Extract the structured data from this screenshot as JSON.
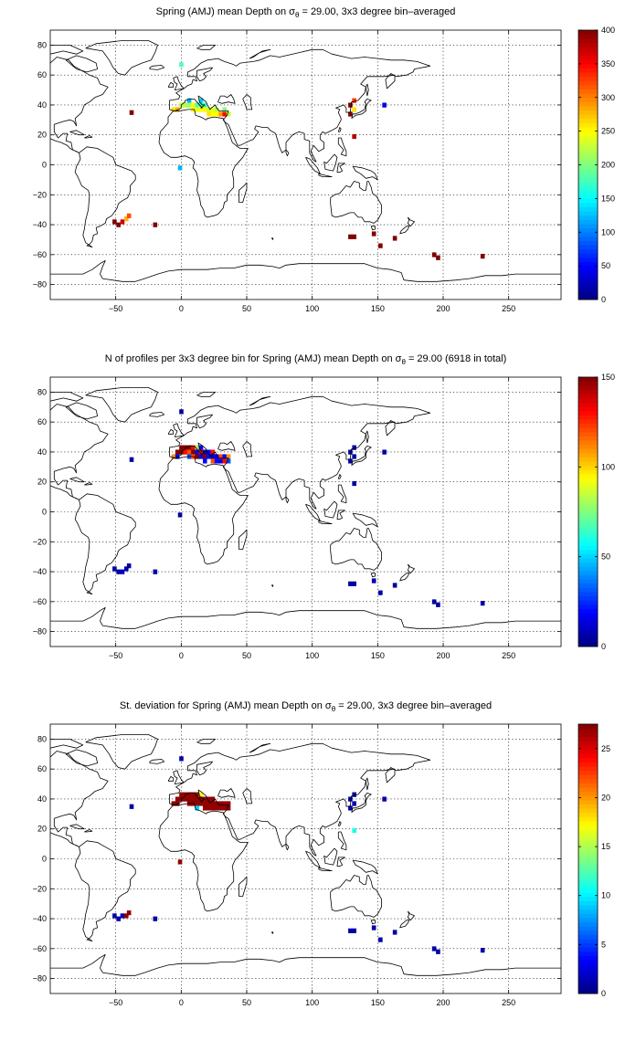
{
  "colormap": "jet",
  "colors": {
    "coast": "#000000",
    "background": "#ffffff"
  },
  "chart_data": [
    {
      "type": "heatmap",
      "title_main": "Spring (AMJ) mean Depth on σ",
      "title_sub": "θ",
      "title_rest": " = 29.00, 3x3 degree bin–averaged",
      "xlim": [
        -100,
        290
      ],
      "ylim": [
        -90,
        90
      ],
      "xticks": [
        -50,
        0,
        50,
        100,
        150,
        200,
        250
      ],
      "yticks": [
        -80,
        -60,
        -40,
        -20,
        0,
        20,
        40,
        60,
        80
      ],
      "grid": true,
      "colorbar": {
        "min": 0,
        "max": 400,
        "ticks": [
          0,
          50,
          100,
          150,
          200,
          250,
          300,
          350,
          400
        ]
      },
      "bin_size_deg": 3,
      "cells": [
        [
          0,
          67,
          180
        ],
        [
          -1,
          -2,
          120
        ],
        [
          -38,
          35,
          400
        ],
        [
          -51,
          -38,
          400
        ],
        [
          -48,
          -40,
          400
        ],
        [
          -45,
          -38,
          370
        ],
        [
          -42,
          -36,
          280
        ],
        [
          -40,
          -34,
          320
        ],
        [
          -20,
          -40,
          400
        ],
        [
          -6,
          37,
          260
        ],
        [
          -3,
          37,
          280
        ],
        [
          0,
          40,
          230
        ],
        [
          3,
          40,
          220
        ],
        [
          6,
          43,
          120
        ],
        [
          6,
          40,
          210
        ],
        [
          9,
          40,
          250
        ],
        [
          9,
          37,
          250
        ],
        [
          12,
          40,
          180
        ],
        [
          12,
          37,
          240
        ],
        [
          15,
          43,
          130
        ],
        [
          15,
          40,
          180
        ],
        [
          15,
          37,
          250
        ],
        [
          18,
          40,
          170
        ],
        [
          18,
          37,
          250
        ],
        [
          21,
          37,
          230
        ],
        [
          21,
          34,
          260
        ],
        [
          24,
          37,
          240
        ],
        [
          24,
          34,
          250
        ],
        [
          27,
          37,
          220
        ],
        [
          27,
          34,
          250
        ],
        [
          30,
          34,
          290
        ],
        [
          33,
          34,
          350
        ],
        [
          33,
          37,
          200
        ],
        [
          36,
          34,
          230
        ],
        [
          129,
          40,
          400
        ],
        [
          132,
          43,
          330
        ],
        [
          132,
          37,
          260
        ],
        [
          129,
          34,
          400
        ],
        [
          132,
          19,
          380
        ],
        [
          155,
          40,
          40
        ],
        [
          129,
          -48,
          400
        ],
        [
          132,
          -48,
          400
        ],
        [
          147,
          -46,
          400
        ],
        [
          152,
          -54,
          400
        ],
        [
          163,
          -49,
          400
        ],
        [
          193,
          -60,
          400
        ],
        [
          196,
          -62,
          400
        ],
        [
          230,
          -61,
          400
        ]
      ]
    },
    {
      "type": "heatmap",
      "title_main": "N of profiles per 3x3 degree bin for Spring (AMJ) mean Depth on σ",
      "title_sub": "θ",
      "title_rest": " = 29.00 (6918 in total)",
      "xlim": [
        -100,
        290
      ],
      "ylim": [
        -90,
        90
      ],
      "xticks": [
        -50,
        0,
        50,
        100,
        150,
        200,
        250
      ],
      "yticks": [
        -80,
        -60,
        -40,
        -20,
        0,
        20,
        40,
        60,
        80
      ],
      "grid": true,
      "colorbar": {
        "min": 0,
        "max": 150,
        "ticks": [
          0,
          50,
          100,
          150
        ]
      },
      "bin_size_deg": 3,
      "cells": [
        [
          0,
          67,
          5
        ],
        [
          -1,
          -2,
          5
        ],
        [
          -38,
          35,
          5
        ],
        [
          -51,
          -38,
          5
        ],
        [
          -48,
          -40,
          5
        ],
        [
          -45,
          -40,
          10
        ],
        [
          -42,
          -38,
          5
        ],
        [
          -40,
          -36,
          5
        ],
        [
          -20,
          -40,
          5
        ],
        [
          -6,
          37,
          110
        ],
        [
          -3,
          40,
          150
        ],
        [
          -3,
          37,
          20
        ],
        [
          0,
          43,
          150
        ],
        [
          0,
          40,
          150
        ],
        [
          3,
          43,
          150
        ],
        [
          3,
          40,
          130
        ],
        [
          6,
          43,
          150
        ],
        [
          6,
          40,
          120
        ],
        [
          6,
          37,
          30
        ],
        [
          9,
          43,
          130
        ],
        [
          9,
          40,
          150
        ],
        [
          9,
          37,
          120
        ],
        [
          12,
          43,
          80
        ],
        [
          12,
          40,
          20
        ],
        [
          12,
          37,
          150
        ],
        [
          15,
          43,
          20
        ],
        [
          15,
          40,
          130
        ],
        [
          15,
          37,
          20
        ],
        [
          18,
          40,
          10
        ],
        [
          18,
          37,
          150
        ],
        [
          18,
          34,
          20
        ],
        [
          21,
          40,
          15
        ],
        [
          21,
          37,
          20
        ],
        [
          24,
          40,
          130
        ],
        [
          24,
          37,
          10
        ],
        [
          24,
          34,
          120
        ],
        [
          27,
          37,
          15
        ],
        [
          27,
          34,
          20
        ],
        [
          30,
          37,
          120
        ],
        [
          30,
          34,
          15
        ],
        [
          33,
          37,
          20
        ],
        [
          33,
          34,
          130
        ],
        [
          36,
          37,
          110
        ],
        [
          36,
          34,
          30
        ],
        [
          129,
          40,
          5
        ],
        [
          132,
          43,
          5
        ],
        [
          132,
          37,
          5
        ],
        [
          129,
          34,
          5
        ],
        [
          132,
          19,
          5
        ],
        [
          155,
          40,
          5
        ],
        [
          129,
          -48,
          5
        ],
        [
          132,
          -48,
          5
        ],
        [
          147,
          -46,
          5
        ],
        [
          152,
          -54,
          5
        ],
        [
          163,
          -49,
          5
        ],
        [
          193,
          -60,
          5
        ],
        [
          196,
          -62,
          5
        ],
        [
          230,
          -61,
          5
        ]
      ]
    },
    {
      "type": "heatmap",
      "title_main": "St. deviation for Spring (AMJ) mean Depth on σ",
      "title_sub": "θ",
      "title_rest": " = 29.00, 3x3 degree bin–averaged",
      "xlim": [
        -100,
        290
      ],
      "ylim": [
        -90,
        90
      ],
      "xticks": [
        -50,
        0,
        50,
        100,
        150,
        200,
        250
      ],
      "yticks": [
        -80,
        -60,
        -40,
        -20,
        0,
        20,
        40,
        60,
        80
      ],
      "grid": true,
      "colorbar": {
        "min": 0,
        "max": 27.5,
        "ticks": [
          0,
          5,
          10,
          15,
          20,
          25
        ]
      },
      "bin_size_deg": 3,
      "cells": [
        [
          0,
          67,
          1
        ],
        [
          -1,
          -2,
          27
        ],
        [
          -38,
          35,
          1
        ],
        [
          -51,
          -38,
          1
        ],
        [
          -48,
          -40,
          1
        ],
        [
          -45,
          -38,
          1
        ],
        [
          -42,
          -38,
          27
        ],
        [
          -40,
          -36,
          27
        ],
        [
          -20,
          -40,
          1
        ],
        [
          -6,
          37,
          27
        ],
        [
          -3,
          40,
          27
        ],
        [
          -3,
          37,
          27
        ],
        [
          0,
          43,
          27
        ],
        [
          0,
          40,
          27
        ],
        [
          3,
          43,
          27
        ],
        [
          3,
          40,
          27
        ],
        [
          6,
          43,
          27
        ],
        [
          6,
          40,
          27
        ],
        [
          6,
          37,
          27
        ],
        [
          9,
          43,
          27
        ],
        [
          9,
          40,
          27
        ],
        [
          9,
          37,
          27
        ],
        [
          12,
          43,
          27
        ],
        [
          12,
          40,
          27
        ],
        [
          12,
          37,
          27
        ],
        [
          15,
          43,
          17
        ],
        [
          15,
          40,
          27
        ],
        [
          15,
          37,
          27
        ],
        [
          18,
          40,
          27
        ],
        [
          18,
          37,
          27
        ],
        [
          18,
          34,
          27
        ],
        [
          21,
          40,
          27
        ],
        [
          21,
          37,
          27
        ],
        [
          21,
          34,
          27
        ],
        [
          24,
          40,
          27
        ],
        [
          24,
          37,
          27
        ],
        [
          24,
          34,
          27
        ],
        [
          27,
          37,
          27
        ],
        [
          27,
          34,
          27
        ],
        [
          30,
          37,
          27
        ],
        [
          30,
          34,
          27
        ],
        [
          33,
          37,
          27
        ],
        [
          33,
          34,
          27
        ],
        [
          36,
          37,
          27
        ],
        [
          36,
          34,
          27
        ],
        [
          12,
          34,
          9
        ],
        [
          129,
          40,
          1
        ],
        [
          132,
          43,
          1
        ],
        [
          132,
          37,
          1
        ],
        [
          129,
          34,
          1
        ],
        [
          132,
          19,
          11
        ],
        [
          155,
          40,
          1
        ],
        [
          129,
          -48,
          1
        ],
        [
          132,
          -48,
          1
        ],
        [
          147,
          -46,
          1
        ],
        [
          152,
          -54,
          1
        ],
        [
          163,
          -49,
          1
        ],
        [
          193,
          -60,
          1
        ],
        [
          196,
          -62,
          1
        ],
        [
          230,
          -61,
          1
        ]
      ]
    }
  ]
}
